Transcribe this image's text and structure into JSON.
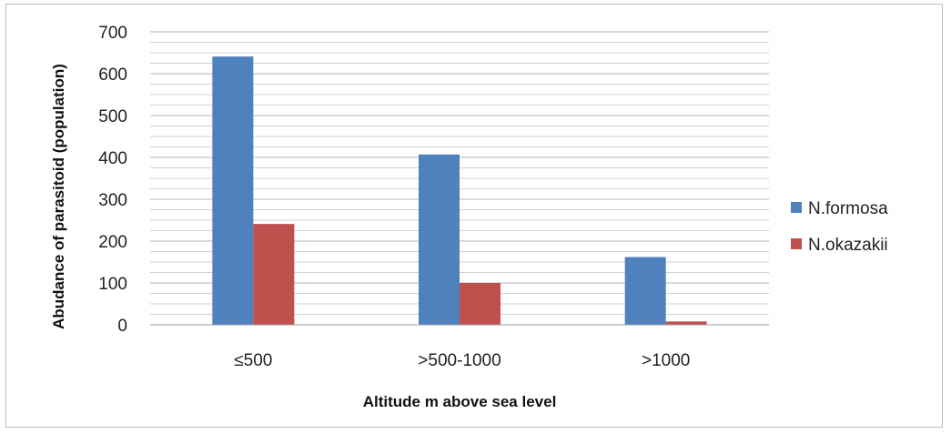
{
  "chart_data": {
    "type": "bar",
    "title": "",
    "xlabel": "Altitude m above sea level",
    "ylabel": "Abudance of parasitoid (population)",
    "categories": [
      "≤500",
      ">500-1000",
      ">1000"
    ],
    "series": [
      {
        "name": "N.formosa",
        "values": [
          641,
          407,
          162
        ],
        "color": "#4f81bd"
      },
      {
        "name": "N.okazakii",
        "values": [
          241,
          100,
          8
        ],
        "color": "#c0504d"
      }
    ],
    "ylim": [
      0,
      700
    ],
    "yticks": [
      0,
      100,
      200,
      300,
      400,
      500,
      600,
      700
    ],
    "ytick_labels": [
      "0",
      "100",
      "200",
      "300",
      "400",
      "500",
      "600",
      "700"
    ],
    "grid": true,
    "legend_position": "right"
  }
}
